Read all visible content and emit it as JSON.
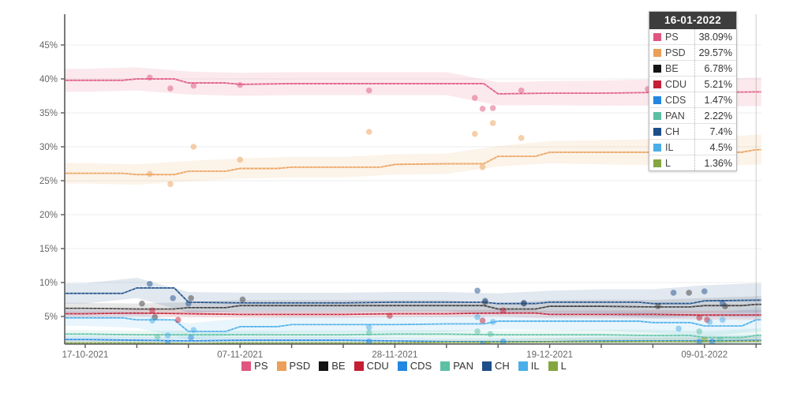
{
  "tooltip": {
    "date": "16-01-2022",
    "rows": [
      {
        "party": "PS",
        "value": "38.09%"
      },
      {
        "party": "PSD",
        "value": "29.57%"
      },
      {
        "party": "BE",
        "value": "6.78%"
      },
      {
        "party": "CDU",
        "value": "5.21%"
      },
      {
        "party": "CDS",
        "value": "1.47%"
      },
      {
        "party": "PAN",
        "value": "2.22%"
      },
      {
        "party": "CH",
        "value": "7.4%"
      },
      {
        "party": "IL",
        "value": "4.5%"
      },
      {
        "party": "L",
        "value": "1.36%"
      }
    ]
  },
  "legend": {
    "items": [
      "PS",
      "PSD",
      "BE",
      "CDU",
      "CDS",
      "PAN",
      "CH",
      "IL",
      "L"
    ]
  },
  "colors": {
    "PS": "#e0567e",
    "PSD": "#eb9f58",
    "BE": "#141414",
    "CDU": "#c41f35",
    "CDS": "#2287e0",
    "PAN": "#5cc0a5",
    "CH": "#1d4e89",
    "IL": "#4aaee8",
    "L": "#84a63f",
    "axis": "#5a5a5a",
    "grid": "#ededed",
    "hover_line": "#cccccc",
    "tick_text": "#666666"
  },
  "chart_data": {
    "type": "line",
    "title": "",
    "xlabel": "",
    "ylabel": "",
    "grid": true,
    "legend_position": "bottom",
    "y_ticks": [
      5,
      10,
      15,
      20,
      25,
      30,
      35,
      40,
      45
    ],
    "y_tick_suffix": "%",
    "ylim": [
      0.9,
      49.5
    ],
    "x_tick_labels": [
      "17-10-2021",
      "07-11-2021",
      "28-11-2021",
      "19-12-2021",
      "09-01-2022"
    ],
    "x_tick_label_indices": [
      0,
      3,
      6,
      9,
      12
    ],
    "n_weekly_points": 14,
    "hover_index": 13,
    "hover_date": "16-01-2022",
    "series": [
      {
        "name": "PS",
        "color": "#e0567e",
        "band_start": 1.7,
        "band_end": 2.1,
        "values": [
          39.8,
          40.0,
          39.4,
          39.2,
          39.3,
          39.3,
          39.3,
          39.3,
          37.8,
          37.9,
          37.9,
          38.0,
          38.0,
          38.09
        ],
        "scatter": [
          [
            1.25,
            40.2
          ],
          [
            1.65,
            38.6
          ],
          [
            2.1,
            39.0
          ],
          [
            3.0,
            39.1
          ],
          [
            5.5,
            38.3
          ],
          [
            7.55,
            37.2
          ],
          [
            7.7,
            35.6
          ],
          [
            7.9,
            35.7
          ],
          [
            8.45,
            38.3
          ],
          [
            10.9,
            38.5
          ]
        ]
      },
      {
        "name": "PSD",
        "color": "#eb9f58",
        "band_start": 1.5,
        "band_end": 2.2,
        "values": [
          26.1,
          25.9,
          26.4,
          26.8,
          27.0,
          27.0,
          27.4,
          27.5,
          28.6,
          29.2,
          29.2,
          29.2,
          29.2,
          29.57
        ],
        "scatter": [
          [
            1.25,
            26.0
          ],
          [
            1.65,
            24.5
          ],
          [
            2.1,
            30.0
          ],
          [
            3.0,
            28.1
          ],
          [
            5.5,
            32.2
          ],
          [
            7.55,
            31.9
          ],
          [
            7.7,
            27.0
          ],
          [
            7.9,
            33.5
          ],
          [
            8.45,
            31.3
          ]
        ]
      },
      {
        "name": "BE",
        "color": "#3a3a3a",
        "band_start": 0.8,
        "band_end": 1.2,
        "values": [
          6.2,
          6.1,
          6.3,
          6.6,
          6.6,
          6.6,
          6.6,
          6.6,
          6.1,
          6.5,
          6.5,
          6.4,
          6.6,
          6.78
        ],
        "scatter": [
          [
            1.1,
            6.9
          ],
          [
            1.35,
            4.9
          ],
          [
            2.05,
            7.7
          ],
          [
            3.05,
            7.5
          ],
          [
            7.75,
            7.1
          ],
          [
            8.5,
            6.9
          ],
          [
            11.1,
            6.5
          ],
          [
            11.7,
            8.5
          ],
          [
            12.4,
            6.5
          ]
        ]
      },
      {
        "name": "CDU",
        "color": "#c41f35",
        "band_start": 0.5,
        "band_end": 0.7,
        "values": [
          5.4,
          5.5,
          5.4,
          5.3,
          5.3,
          5.3,
          5.4,
          5.4,
          5.5,
          5.3,
          5.3,
          5.3,
          5.2,
          5.21
        ],
        "scatter": [
          [
            1.3,
            5.9
          ],
          [
            1.8,
            4.5
          ],
          [
            5.9,
            5.1
          ],
          [
            7.7,
            4.4
          ],
          [
            8.1,
            5.9
          ],
          [
            11.9,
            4.8
          ],
          [
            12.05,
            4.5
          ]
        ]
      },
      {
        "name": "CDS",
        "color": "#2287e0",
        "band_start": 0.5,
        "band_end": 0.8,
        "values": [
          1.6,
          1.5,
          1.4,
          1.5,
          1.5,
          1.5,
          1.4,
          1.3,
          1.3,
          1.3,
          1.4,
          1.4,
          1.4,
          1.47
        ],
        "scatter": [
          [
            1.6,
            1.0
          ],
          [
            2.05,
            1.9
          ],
          [
            5.5,
            1.3
          ],
          [
            7.7,
            0.9
          ],
          [
            8.1,
            1.3
          ],
          [
            11.9,
            1.3
          ],
          [
            12.15,
            1.3
          ]
        ]
      },
      {
        "name": "PAN",
        "color": "#5cc0a5",
        "band_start": 0.6,
        "band_end": 1.0,
        "values": [
          2.4,
          2.3,
          2.3,
          2.3,
          2.3,
          2.3,
          2.4,
          2.4,
          2.3,
          2.3,
          2.3,
          2.2,
          1.9,
          2.22
        ],
        "scatter": [
          [
            1.4,
            2.0
          ],
          [
            5.5,
            2.6
          ],
          [
            7.6,
            2.8
          ],
          [
            7.85,
            2.4
          ],
          [
            11.9,
            2.8
          ],
          [
            12.3,
            1.6
          ]
        ]
      },
      {
        "name": "CH",
        "color": "#1d4e89",
        "band_start": 1.5,
        "band_end": 2.5,
        "values": [
          8.4,
          9.2,
          7.1,
          7.0,
          7.0,
          7.0,
          7.1,
          7.1,
          6.9,
          7.1,
          7.1,
          6.9,
          7.3,
          7.4
        ],
        "scatter": [
          [
            1.25,
            9.8
          ],
          [
            1.7,
            7.7
          ],
          [
            2.0,
            6.9
          ],
          [
            7.6,
            8.8
          ],
          [
            7.75,
            7.3
          ],
          [
            8.5,
            7.0
          ],
          [
            11.4,
            8.5
          ],
          [
            12.0,
            8.7
          ],
          [
            12.35,
            7.0
          ]
        ]
      },
      {
        "name": "IL",
        "color": "#4aaee8",
        "band_start": 1.2,
        "band_end": 1.7,
        "values": [
          4.8,
          4.5,
          2.8,
          3.5,
          3.8,
          3.8,
          3.8,
          3.9,
          4.3,
          4.3,
          4.3,
          4.1,
          3.6,
          4.5
        ],
        "scatter": [
          [
            1.3,
            4.4
          ],
          [
            1.6,
            2.2
          ],
          [
            2.1,
            3.0
          ],
          [
            5.5,
            3.4
          ],
          [
            7.6,
            4.9
          ],
          [
            7.9,
            4.2
          ],
          [
            11.5,
            3.2
          ],
          [
            12.1,
            4.2
          ],
          [
            12.35,
            4.5
          ]
        ]
      },
      {
        "name": "L",
        "color": "#84a63f",
        "band_start": 0.4,
        "band_end": 0.7,
        "values": [
          1.1,
          1.1,
          1.0,
          1.1,
          1.1,
          1.1,
          1.1,
          1.2,
          1.2,
          1.25,
          1.25,
          1.3,
          1.3,
          1.36
        ],
        "scatter": [
          [
            7.8,
            1.0
          ],
          [
            12.0,
            1.6
          ]
        ]
      }
    ]
  }
}
